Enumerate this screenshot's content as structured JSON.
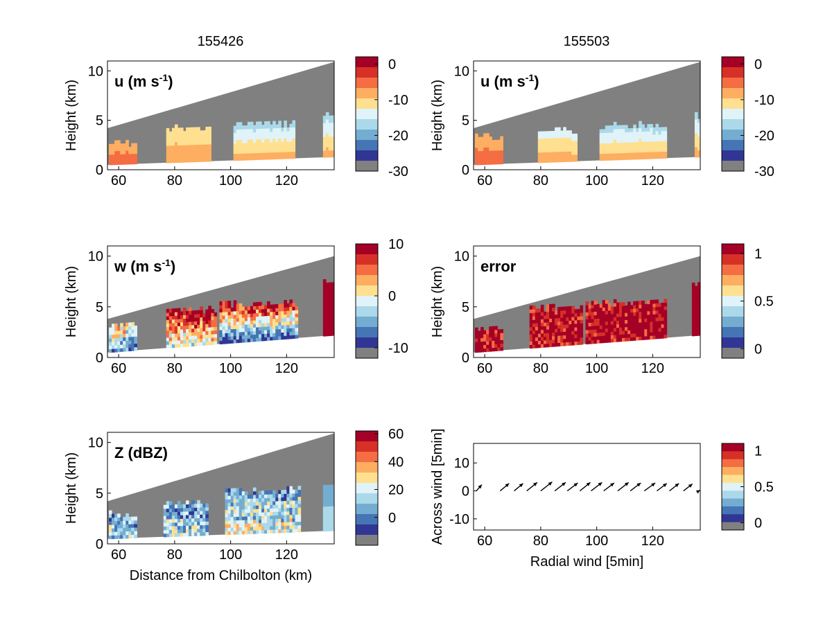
{
  "colors": {
    "scale": [
      "#a50026",
      "#d73027",
      "#f46d43",
      "#fdae61",
      "#fee090",
      "#e0f3f8",
      "#abd9e9",
      "#74add1",
      "#4575b4",
      "#313695"
    ],
    "gray": "#808080",
    "white": "#ffffff"
  },
  "columns": {
    "left_title": "155426",
    "right_title": "155503"
  },
  "chart_data": [
    {
      "id": "u_left",
      "type": "heatmap",
      "label": "u (m s",
      "label_sup": "-1",
      "label_close": ")",
      "ylabel": "Height (km)",
      "xlabel": "",
      "xlim": [
        56,
        137
      ],
      "ylim": [
        0,
        11
      ],
      "xticks": [
        "60",
        "80",
        "100",
        "120"
      ],
      "yticks": [
        "0",
        "5",
        "10"
      ],
      "scan_bottom": [
        0.5,
        1.3
      ],
      "scan_top": [
        4.2,
        10.9
      ],
      "colorbar": {
        "ticks": [
          "0",
          "-10",
          "-20",
          "-30"
        ],
        "lim": [
          -30,
          2
        ]
      },
      "echoes": [
        {
          "x": [
            56.5,
            66
          ],
          "top": 2.8,
          "base_color": 2,
          "top_color": 3
        },
        {
          "x": [
            77,
            93
          ],
          "top": 4.3,
          "base_color": 3,
          "top_color": 4
        },
        {
          "x": [
            101,
            123
          ],
          "top": 4.8,
          "base_color": 3,
          "top_color": 6
        },
        {
          "x": [
            133,
            137
          ],
          "top": 5.8,
          "base_color": 3,
          "top_color": 6
        }
      ]
    },
    {
      "id": "u_right",
      "type": "heatmap",
      "label": "u (m s",
      "label_sup": "-1",
      "label_close": ")",
      "ylabel": "Height (km)",
      "xlabel": "",
      "xlim": [
        56,
        137
      ],
      "ylim": [
        0,
        11
      ],
      "xticks": [
        "60",
        "80",
        "100",
        "120"
      ],
      "yticks": [
        "0",
        "5",
        "10"
      ],
      "scan_bottom": [
        0.5,
        1.3
      ],
      "scan_top": [
        4.2,
        10.9
      ],
      "colorbar": {
        "ticks": [
          "0",
          "-10",
          "-20",
          "-30"
        ],
        "lim": [
          -30,
          2
        ]
      },
      "echoes": [
        {
          "x": [
            56.5,
            66
          ],
          "top": 3.4,
          "base_color": 2,
          "top_color": 3
        },
        {
          "x": [
            79,
            93
          ],
          "top": 4.1,
          "base_color": 3,
          "top_color": 5
        },
        {
          "x": [
            101,
            125
          ],
          "top": 4.6,
          "base_color": 3,
          "top_color": 6
        },
        {
          "x": [
            135,
            137
          ],
          "top": 5.6,
          "base_color": 3,
          "top_color": 6
        }
      ]
    },
    {
      "id": "w_left",
      "type": "heatmap",
      "label": "w (m s",
      "label_sup": "-1",
      "label_close": ")",
      "ylabel": "Height (km)",
      "xlabel": "",
      "xlim": [
        56,
        137
      ],
      "ylim": [
        0,
        11
      ],
      "xticks": [
        "60",
        "80",
        "100",
        "120"
      ],
      "yticks": [
        "0",
        "5",
        "10"
      ],
      "scan_bottom": [
        0.5,
        2.2
      ],
      "scan_top": [
        3.8,
        10.0
      ],
      "colorbar": {
        "ticks": [
          "10",
          "0",
          "-10"
        ],
        "lim": [
          -12,
          10
        ]
      },
      "echoes": [
        {
          "x": [
            56.5,
            66
          ],
          "top": 3.4,
          "base_color": 8,
          "top_color": 3,
          "mixed": true
        },
        {
          "x": [
            77,
            95
          ],
          "top": 4.8,
          "base_color": 5,
          "top_color": 0,
          "mixed": true
        },
        {
          "x": [
            96,
            124
          ],
          "top": 5.5,
          "base_color": 9,
          "top_color": 0,
          "mixed": true
        },
        {
          "x": [
            133,
            137
          ],
          "top": 7.5,
          "base_color": 0,
          "top_color": 0
        }
      ]
    },
    {
      "id": "error_right",
      "type": "heatmap",
      "label": "error",
      "label_sup": "",
      "label_close": "",
      "ylabel": "Height (km)",
      "xlabel": "",
      "xlim": [
        56,
        137
      ],
      "ylim": [
        0,
        11
      ],
      "xticks": [
        "60",
        "80",
        "100",
        "120"
      ],
      "yticks": [
        "0",
        "5",
        "10"
      ],
      "scan_bottom": [
        0.5,
        2.2
      ],
      "scan_top": [
        3.8,
        10.0
      ],
      "colorbar": {
        "ticks": [
          "1",
          "0.5",
          "0"
        ],
        "lim": [
          -0.1,
          1.1
        ]
      },
      "echoes": [
        {
          "x": [
            56.5,
            66
          ],
          "top": 3.0,
          "base_color": 0,
          "top_color": 0,
          "mixed": true
        },
        {
          "x": [
            76,
            95
          ],
          "top": 5.0,
          "base_color": 0,
          "top_color": 0,
          "mixed": true
        },
        {
          "x": [
            96,
            125
          ],
          "top": 5.6,
          "base_color": 0,
          "top_color": 0,
          "mixed": true
        },
        {
          "x": [
            134,
            137
          ],
          "top": 7.4,
          "base_color": 0,
          "top_color": 0
        }
      ]
    },
    {
      "id": "z_left",
      "type": "heatmap",
      "label": "Z (dBZ)",
      "label_sup": "",
      "label_close": "",
      "ylabel": "Height (km)",
      "xlabel": "Distance from Chilbolton (km)",
      "xlim": [
        56,
        137
      ],
      "ylim": [
        0,
        11
      ],
      "xticks": [
        "60",
        "80",
        "100",
        "120"
      ],
      "yticks": [
        "0",
        "5",
        "10"
      ],
      "scan_bottom": [
        0.5,
        1.3
      ],
      "scan_top": [
        4.2,
        10.9
      ],
      "colorbar": {
        "ticks": [
          "60",
          "40",
          "20",
          "0"
        ],
        "lim": [
          -20,
          62
        ]
      },
      "echoes": [
        {
          "x": [
            56.5,
            66
          ],
          "top": 3.0,
          "base_color": 6,
          "top_color": 7,
          "mixed": true
        },
        {
          "x": [
            76,
            92
          ],
          "top": 4.2,
          "base_color": 6,
          "top_color": 7,
          "mixed": true
        },
        {
          "x": [
            98,
            125
          ],
          "top": 5.4,
          "base_color": 5,
          "top_color": 7,
          "mixed": true
        },
        {
          "x": [
            133,
            137
          ],
          "top": 6.0,
          "base_color": 6,
          "top_color": 7
        }
      ]
    },
    {
      "id": "wind_right",
      "type": "scatter",
      "label": "",
      "ylabel": "Across wind [5min]",
      "xlabel": "Radial wind [5min]",
      "xlim": [
        56,
        137
      ],
      "ylim": [
        -14,
        17
      ],
      "xticks": [
        "60",
        "80",
        "100",
        "120"
      ],
      "yticks": [
        "-10",
        "0",
        "10"
      ],
      "colorbar": {
        "ticks": [
          "1",
          "0.5",
          "0"
        ],
        "lim": [
          -0.1,
          1.1
        ]
      },
      "arrows": [
        {
          "x": 57,
          "u": 2.2,
          "v": 2.5
        },
        {
          "x": 65.5,
          "u": 3.6,
          "v": 3.0
        },
        {
          "x": 70.5,
          "u": 3.6,
          "v": 3.0
        },
        {
          "x": 75,
          "u": 4.2,
          "v": 3.4
        },
        {
          "x": 80,
          "u": 4.6,
          "v": 3.6
        },
        {
          "x": 85,
          "u": 4.4,
          "v": 3.4
        },
        {
          "x": 89.5,
          "u": 4.2,
          "v": 3.2
        },
        {
          "x": 94,
          "u": 4.2,
          "v": 3.4
        },
        {
          "x": 98,
          "u": 4.4,
          "v": 3.4
        },
        {
          "x": 102.5,
          "u": 4.2,
          "v": 3.2
        },
        {
          "x": 107.5,
          "u": 4.4,
          "v": 3.4
        },
        {
          "x": 112,
          "u": 4.2,
          "v": 3.2
        },
        {
          "x": 117,
          "u": 4.4,
          "v": 3.2
        },
        {
          "x": 121.5,
          "u": 4.0,
          "v": 3.0
        },
        {
          "x": 126,
          "u": 3.8,
          "v": 3.0
        },
        {
          "x": 131,
          "u": 3.6,
          "v": 2.8
        },
        {
          "x": 136.5,
          "u": 0.5,
          "v": 0.3
        }
      ]
    }
  ]
}
